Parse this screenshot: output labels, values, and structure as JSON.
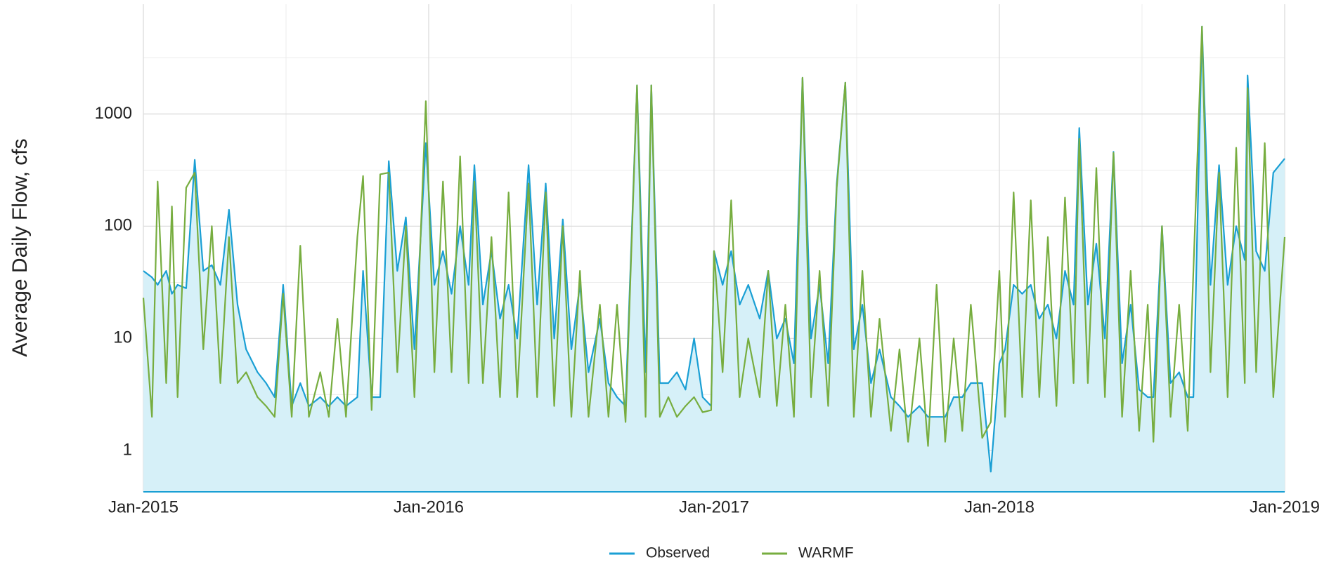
{
  "chart_data": {
    "type": "line",
    "y_label": "Average Daily Flow, cfs",
    "log_scale": true,
    "grid": true,
    "legend": "bottom",
    "x": [
      2015.0,
      2015.03,
      2015.05,
      2015.08,
      2015.1,
      2015.12,
      2015.15,
      2015.18,
      2015.21,
      2015.24,
      2015.27,
      2015.3,
      2015.33,
      2015.36,
      2015.4,
      2015.43,
      2015.46,
      2015.49,
      2015.52,
      2015.55,
      2015.58,
      2015.62,
      2015.65,
      2015.68,
      2015.71,
      2015.75,
      2015.77,
      2015.8,
      2015.83,
      2015.86,
      2015.89,
      2015.92,
      2015.95,
      2015.99,
      2016.02,
      2016.05,
      2016.08,
      2016.11,
      2016.14,
      2016.16,
      2016.19,
      2016.22,
      2016.25,
      2016.28,
      2016.31,
      2016.35,
      2016.38,
      2016.41,
      2016.44,
      2016.47,
      2016.5,
      2016.53,
      2016.56,
      2016.6,
      2016.63,
      2016.66,
      2016.69,
      2016.73,
      2016.76,
      2016.78,
      2016.81,
      2016.84,
      2016.87,
      2016.9,
      2016.93,
      2016.96,
      2016.99,
      2017.0,
      2017.03,
      2017.06,
      2017.09,
      2017.12,
      2017.16,
      2017.19,
      2017.22,
      2017.25,
      2017.28,
      2017.31,
      2017.34,
      2017.37,
      2017.4,
      2017.43,
      2017.46,
      2017.49,
      2017.52,
      2017.55,
      2017.58,
      2017.62,
      2017.65,
      2017.68,
      2017.72,
      2017.75,
      2017.78,
      2017.81,
      2017.84,
      2017.87,
      2017.9,
      2017.94,
      2017.97,
      2018.0,
      2018.02,
      2018.05,
      2018.08,
      2018.11,
      2018.14,
      2018.17,
      2018.2,
      2018.23,
      2018.26,
      2018.28,
      2018.31,
      2018.34,
      2018.37,
      2018.4,
      2018.43,
      2018.46,
      2018.49,
      2018.52,
      2018.54,
      2018.57,
      2018.6,
      2018.63,
      2018.66,
      2018.68,
      2018.71,
      2018.74,
      2018.77,
      2018.8,
      2018.83,
      2018.86,
      2018.87,
      2018.9,
      2018.93,
      2018.96,
      2019.0
    ],
    "series": [
      {
        "name": "Observed",
        "color": "#1a9fd4",
        "fill": "#d6f0f8",
        "values": [
          40,
          35,
          30,
          40,
          25,
          30,
          28,
          390,
          40,
          45,
          30,
          140,
          20,
          8,
          5,
          4,
          3,
          30,
          2.5,
          4,
          2.5,
          3,
          2.5,
          3,
          2.5,
          3,
          40,
          3,
          3,
          380,
          40,
          120,
          8,
          550,
          30,
          60,
          25,
          100,
          30,
          350,
          20,
          60,
          15,
          30,
          10,
          350,
          20,
          240,
          10,
          115,
          8,
          30,
          5,
          15,
          4,
          3,
          2.5,
          1800,
          5,
          1800,
          4,
          4,
          5,
          3.5,
          10,
          3,
          2.5,
          60,
          30,
          60,
          20,
          30,
          15,
          40,
          10,
          15,
          6,
          2100,
          10,
          30,
          6,
          240,
          1900,
          8,
          20,
          4,
          8,
          3,
          2.5,
          2,
          2.5,
          2,
          2,
          2,
          3,
          3,
          4,
          4,
          0.65,
          6,
          8,
          30,
          25,
          30,
          15,
          20,
          10,
          40,
          20,
          750,
          20,
          70,
          10,
          460,
          6,
          20,
          3.5,
          3,
          3,
          100,
          4,
          5,
          3,
          3,
          6000,
          30,
          350,
          30,
          100,
          50,
          2200,
          60,
          40,
          300,
          400
        ]
      },
      {
        "name": "WARMF",
        "color": "#77ad3f",
        "values": [
          23,
          2,
          250,
          4,
          150,
          3,
          220,
          300,
          8,
          100,
          4,
          80,
          4,
          5,
          3,
          2.5,
          2,
          25,
          2,
          67,
          2,
          5,
          2,
          15,
          2,
          80,
          280,
          2.3,
          290,
          300,
          5,
          100,
          3,
          1300,
          5,
          250,
          5,
          420,
          4,
          250,
          4,
          80,
          3,
          200,
          3,
          240,
          3,
          200,
          2.5,
          100,
          2,
          40,
          2,
          20,
          2,
          20,
          1.8,
          1800,
          2,
          1800,
          2,
          3,
          2,
          2.5,
          3,
          2.2,
          2.3,
          60,
          5,
          170,
          3,
          10,
          3,
          40,
          2.5,
          20,
          2,
          2100,
          3,
          40,
          2.5,
          220,
          1900,
          2,
          40,
          2,
          15,
          1.5,
          8,
          1.2,
          10,
          1.1,
          30,
          1.2,
          10,
          1.5,
          20,
          1.3,
          1.8,
          40,
          2,
          200,
          3,
          170,
          3,
          80,
          2.5,
          180,
          4,
          600,
          4,
          330,
          3,
          450,
          2,
          40,
          1.5,
          20,
          1.2,
          100,
          2,
          20,
          1.5,
          40,
          6000,
          5,
          300,
          3,
          500,
          4,
          1700,
          5,
          550,
          3,
          80
        ]
      }
    ],
    "xlim": [
      2015,
      2019
    ],
    "xticks": [
      {
        "value": 2015,
        "label": "Jan-2015"
      },
      {
        "value": 2016,
        "label": "Jan-2016"
      },
      {
        "value": 2017,
        "label": "Jan-2017"
      },
      {
        "value": 2018,
        "label": "Jan-2018"
      },
      {
        "value": 2019,
        "label": "Jan-2019"
      }
    ],
    "xminor": [
      2015.5,
      2016.5,
      2017.5,
      2018.5
    ],
    "ylim": [
      0.43,
      9500
    ],
    "yticks": [
      1,
      10,
      100,
      1000
    ],
    "yminor": [
      3.16,
      31.6,
      316,
      3160
    ]
  }
}
